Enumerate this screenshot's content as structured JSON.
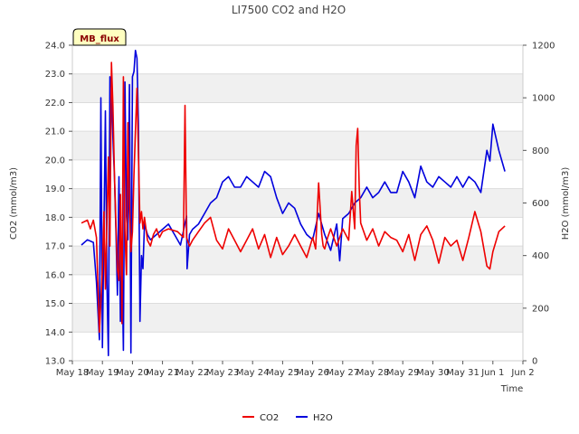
{
  "chart_data": {
    "type": "line",
    "title": "LI7500 CO2 and H2O",
    "badge": "MB_flux",
    "xlabel": "Time",
    "ylabel": "CO2 (mmol/m3)",
    "y2label": "H2O (mmol/m3)",
    "x_tick_labels": [
      "May 18",
      "May 19",
      "May 20",
      "May 21",
      "May 22",
      "May 23",
      "May 24",
      "May 25",
      "May 26",
      "May 27",
      "May 28",
      "May 29",
      "May 30",
      "May 31",
      "Jun 1",
      "Jun 2"
    ],
    "xlim": [
      0,
      15
    ],
    "ylim": [
      13.0,
      24.0
    ],
    "y_ticks": [
      "13.0",
      "14.0",
      "15.0",
      "16.0",
      "17.0",
      "18.0",
      "19.0",
      "20.0",
      "21.0",
      "22.0",
      "23.0",
      "24.0"
    ],
    "y2lim": [
      0,
      1200
    ],
    "y2_ticks": [
      "0",
      "200",
      "400",
      "600",
      "800",
      "1000",
      "1200"
    ],
    "grid": true,
    "legend_position": "bottom-center",
    "colors": {
      "co2": "#ee0000",
      "h2o": "#0000dd",
      "band": "#f0f0f0",
      "grid": "#dcdcdc",
      "badge_bg": "#ffffc0"
    },
    "series": [
      {
        "name": "CO2",
        "axis": "left",
        "x": [
          0.3,
          0.5,
          0.6,
          0.7,
          0.8,
          0.9,
          1.0,
          1.05,
          1.1,
          1.2,
          1.25,
          1.3,
          1.35,
          1.4,
          1.45,
          1.5,
          1.55,
          1.6,
          1.65,
          1.7,
          1.75,
          1.8,
          1.85,
          1.9,
          1.95,
          2.0,
          2.05,
          2.1,
          2.15,
          2.2,
          2.25,
          2.3,
          2.35,
          2.4,
          2.5,
          2.6,
          2.7,
          2.8,
          2.9,
          3.0,
          3.2,
          3.5,
          3.7,
          3.75,
          3.8,
          3.9,
          4.0,
          4.2,
          4.4,
          4.6,
          4.8,
          5.0,
          5.2,
          5.4,
          5.6,
          5.8,
          6.0,
          6.2,
          6.4,
          6.6,
          6.8,
          7.0,
          7.2,
          7.4,
          7.6,
          7.8,
          8.0,
          8.1,
          8.2,
          8.3,
          8.35,
          8.4,
          8.5,
          8.6,
          8.8,
          9.0,
          9.2,
          9.3,
          9.4,
          9.45,
          9.5,
          9.55,
          9.6,
          9.8,
          10.0,
          10.2,
          10.4,
          10.6,
          10.8,
          11.0,
          11.2,
          11.4,
          11.6,
          11.8,
          12.0,
          12.2,
          12.4,
          12.6,
          12.8,
          13.0,
          13.2,
          13.4,
          13.6,
          13.8,
          13.9,
          14.0,
          14.2,
          14.4
        ],
        "values": [
          17.8,
          17.9,
          17.6,
          17.9,
          17.3,
          14.0,
          16.2,
          18.2,
          15.5,
          20.1,
          17.0,
          23.4,
          21.9,
          19.5,
          17.8,
          16.2,
          15.8,
          18.8,
          14.3,
          22.9,
          17.5,
          16.0,
          21.3,
          18.5,
          16.8,
          17.5,
          19.5,
          21.0,
          22.5,
          20.2,
          17.8,
          18.2,
          17.6,
          18.0,
          17.2,
          17.0,
          17.4,
          17.6,
          17.3,
          17.5,
          17.6,
          17.5,
          17.3,
          21.9,
          17.3,
          17.0,
          17.2,
          17.5,
          17.8,
          18.0,
          17.2,
          16.9,
          17.6,
          17.2,
          16.8,
          17.2,
          17.6,
          16.9,
          17.4,
          16.6,
          17.3,
          16.7,
          17.0,
          17.4,
          17.0,
          16.6,
          17.3,
          16.9,
          19.2,
          17.4,
          17.0,
          16.9,
          17.3,
          17.6,
          17.0,
          17.6,
          17.2,
          18.9,
          17.6,
          20.5,
          21.1,
          19.0,
          17.8,
          17.2,
          17.6,
          17.0,
          17.5,
          17.3,
          17.2,
          16.8,
          17.4,
          16.5,
          17.4,
          17.7,
          17.2,
          16.4,
          17.3,
          17.0,
          17.2,
          16.5,
          17.3,
          18.2,
          17.5,
          16.3,
          16.2,
          16.8,
          17.5,
          17.7
        ]
      },
      {
        "name": "H2O",
        "axis": "right",
        "x": [
          0.3,
          0.5,
          0.7,
          0.8,
          0.9,
          0.95,
          1.0,
          1.05,
          1.1,
          1.15,
          1.2,
          1.25,
          1.3,
          1.35,
          1.4,
          1.45,
          1.5,
          1.55,
          1.6,
          1.65,
          1.7,
          1.75,
          1.8,
          1.85,
          1.9,
          1.95,
          2.0,
          2.05,
          2.1,
          2.15,
          2.2,
          2.25,
          2.3,
          2.35,
          2.4,
          2.5,
          2.6,
          2.8,
          3.0,
          3.2,
          3.4,
          3.6,
          3.8,
          3.82,
          3.9,
          4.0,
          4.2,
          4.4,
          4.6,
          4.8,
          5.0,
          5.2,
          5.4,
          5.6,
          5.8,
          6.0,
          6.2,
          6.4,
          6.6,
          6.8,
          7.0,
          7.2,
          7.4,
          7.6,
          7.8,
          8.0,
          8.2,
          8.4,
          8.6,
          8.8,
          8.9,
          9.0,
          9.2,
          9.4,
          9.6,
          9.8,
          10.0,
          10.2,
          10.4,
          10.6,
          10.8,
          11.0,
          11.2,
          11.4,
          11.6,
          11.8,
          12.0,
          12.2,
          12.4,
          12.6,
          12.8,
          13.0,
          13.2,
          13.4,
          13.6,
          13.8,
          13.9,
          14.0,
          14.2,
          14.4
        ],
        "values": [
          440,
          460,
          450,
          300,
          80,
          1000,
          50,
          500,
          950,
          300,
          20,
          1080,
          1040,
          850,
          700,
          500,
          250,
          700,
          150,
          400,
          40,
          1060,
          550,
          460,
          1050,
          30,
          1080,
          1100,
          1180,
          1150,
          900,
          150,
          400,
          350,
          520,
          480,
          460,
          480,
          500,
          520,
          480,
          440,
          550,
          350,
          480,
          500,
          520,
          560,
          600,
          620,
          680,
          700,
          660,
          660,
          700,
          680,
          660,
          720,
          700,
          620,
          560,
          600,
          580,
          520,
          480,
          460,
          560,
          480,
          420,
          520,
          380,
          540,
          560,
          600,
          620,
          660,
          620,
          640,
          680,
          640,
          640,
          720,
          680,
          620,
          740,
          680,
          660,
          700,
          680,
          660,
          700,
          660,
          700,
          680,
          640,
          800,
          760,
          900,
          800,
          720
        ]
      }
    ]
  },
  "legend": {
    "co2_label": "CO2",
    "h2o_label": "H2O"
  }
}
